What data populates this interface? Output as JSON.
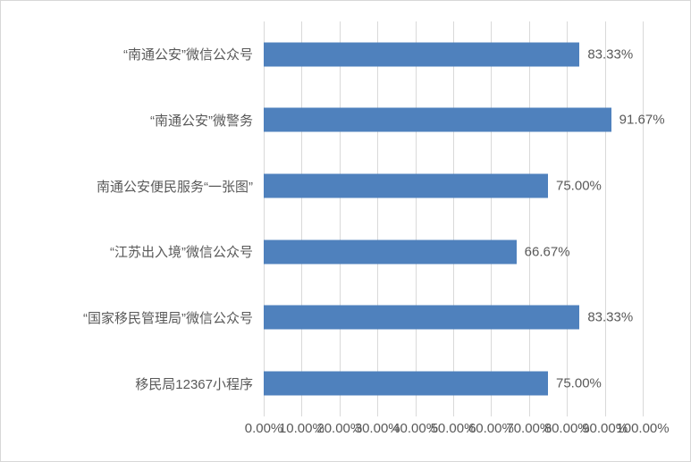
{
  "chart_data": {
    "type": "bar",
    "orientation": "horizontal",
    "title": "",
    "categories": [
      "“南通公安”微信公众号",
      "“南通公安”微警务",
      "南通公安便民服务“一张图”",
      "“江苏出入境”微信公众号",
      "“国家移民管理局”微信公众号",
      "移民局12367小程序"
    ],
    "values": [
      83.33,
      91.67,
      75.0,
      66.67,
      83.33,
      75.0
    ],
    "value_labels": [
      "83.33%",
      "91.67%",
      "75.00%",
      "66.67%",
      "83.33%",
      "75.00%"
    ],
    "x_axis": {
      "min": 0,
      "max": 100,
      "step": 10,
      "tick_labels": [
        "0.00%",
        "10.00%",
        "20.00%",
        "30.00%",
        "40.00%",
        "50.00%",
        "60.00%",
        "70.00%",
        "80.00%",
        "90.00%",
        "100.00%"
      ]
    },
    "grid": "vertical",
    "legend_position": "none",
    "colors": {
      "bar": "#4F81BD",
      "gridline": "#D9D9D9",
      "text": "#595959",
      "chart_border": "#D7D7D7",
      "background": "#FFFFFF"
    }
  }
}
